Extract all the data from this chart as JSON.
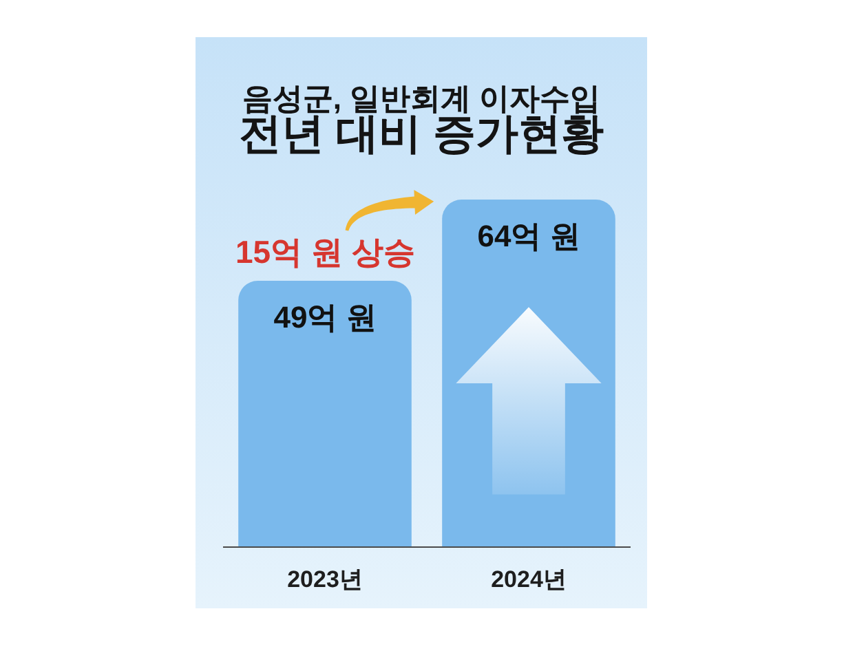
{
  "chart_data": {
    "type": "bar",
    "title": "음성군, 일반회계 이자수입\n전년 대비 증가현황",
    "categories": [
      "2023년",
      "2024년"
    ],
    "values": [
      49,
      64
    ],
    "value_labels": [
      "49억 원",
      "64억 원"
    ],
    "color": "#7ab9ec",
    "annotations": [
      "15억 원 상승"
    ],
    "tick_labels": "x"
  }
}
